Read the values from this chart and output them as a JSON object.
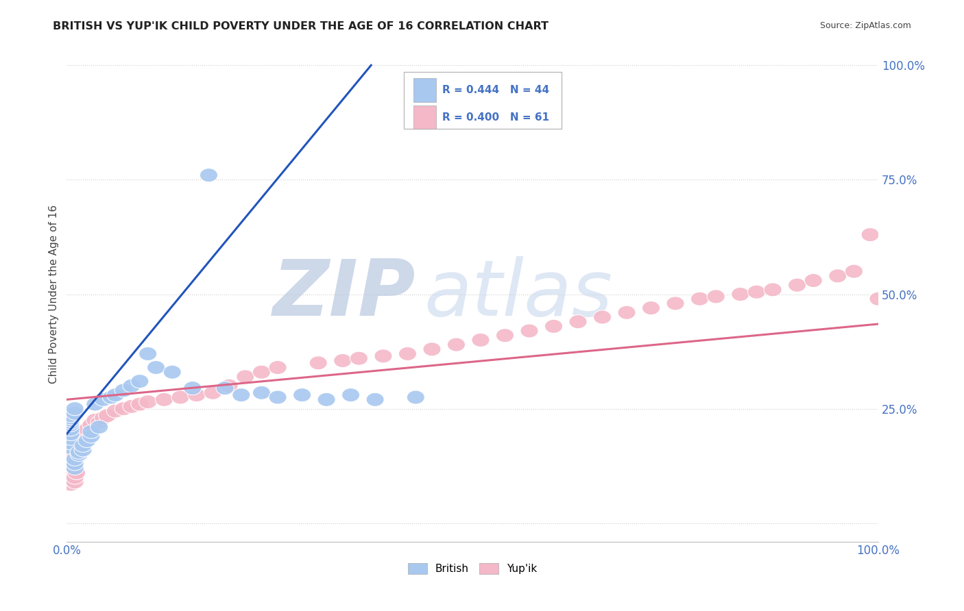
{
  "title": "BRITISH VS YUP'IK CHILD POVERTY UNDER THE AGE OF 16 CORRELATION CHART",
  "source_text": "Source: ZipAtlas.com",
  "ylabel": "Child Poverty Under the Age of 16",
  "R_british": 0.444,
  "N_british": 44,
  "R_yupik": 0.4,
  "N_yupik": 61,
  "british_color": "#a8c8f0",
  "yupik_color": "#f4b8c8",
  "british_line_color": "#2255bb",
  "yupik_line_color": "#dd6688",
  "watermark1": "ZIP",
  "watermark2": "atlas",
  "watermark_color": "#ccd8ee",
  "british_x": [
    0.005,
    0.005,
    0.005,
    0.005,
    0.005,
    0.005,
    0.005,
    0.005,
    0.005,
    0.005,
    0.01,
    0.01,
    0.01,
    0.01,
    0.01,
    0.015,
    0.015,
    0.02,
    0.02,
    0.025,
    0.03,
    0.03,
    0.035,
    0.04,
    0.045,
    0.055,
    0.06,
    0.07,
    0.08,
    0.09,
    0.1,
    0.11,
    0.13,
    0.155,
    0.175,
    0.195,
    0.215,
    0.24,
    0.26,
    0.29,
    0.32,
    0.35,
    0.38,
    0.43
  ],
  "british_y": [
    0.165,
    0.175,
    0.185,
    0.195,
    0.205,
    0.215,
    0.22,
    0.225,
    0.23,
    0.235,
    0.12,
    0.13,
    0.14,
    0.24,
    0.25,
    0.15,
    0.155,
    0.16,
    0.17,
    0.18,
    0.19,
    0.2,
    0.26,
    0.21,
    0.27,
    0.275,
    0.28,
    0.29,
    0.3,
    0.31,
    0.37,
    0.34,
    0.33,
    0.295,
    0.76,
    0.295,
    0.28,
    0.285,
    0.275,
    0.28,
    0.27,
    0.28,
    0.27,
    0.275
  ],
  "yupik_x": [
    0.005,
    0.005,
    0.005,
    0.005,
    0.005,
    0.005,
    0.005,
    0.008,
    0.01,
    0.01,
    0.012,
    0.015,
    0.015,
    0.018,
    0.02,
    0.025,
    0.03,
    0.035,
    0.04,
    0.045,
    0.05,
    0.06,
    0.07,
    0.08,
    0.09,
    0.1,
    0.12,
    0.14,
    0.16,
    0.18,
    0.2,
    0.22,
    0.24,
    0.26,
    0.31,
    0.34,
    0.36,
    0.39,
    0.42,
    0.45,
    0.48,
    0.51,
    0.54,
    0.57,
    0.6,
    0.63,
    0.66,
    0.69,
    0.72,
    0.75,
    0.78,
    0.8,
    0.83,
    0.85,
    0.87,
    0.9,
    0.92,
    0.95,
    0.97,
    0.99,
    1.0
  ],
  "yupik_y": [
    0.085,
    0.095,
    0.105,
    0.115,
    0.125,
    0.135,
    0.145,
    0.155,
    0.09,
    0.1,
    0.11,
    0.165,
    0.175,
    0.185,
    0.195,
    0.205,
    0.215,
    0.225,
    0.22,
    0.23,
    0.235,
    0.245,
    0.25,
    0.255,
    0.26,
    0.265,
    0.27,
    0.275,
    0.28,
    0.285,
    0.3,
    0.32,
    0.33,
    0.34,
    0.35,
    0.355,
    0.36,
    0.365,
    0.37,
    0.38,
    0.39,
    0.4,
    0.41,
    0.42,
    0.43,
    0.44,
    0.45,
    0.46,
    0.47,
    0.48,
    0.49,
    0.495,
    0.5,
    0.505,
    0.51,
    0.52,
    0.53,
    0.54,
    0.55,
    0.63,
    0.49
  ],
  "brit_line_x0": 0.0,
  "brit_line_y0": 0.195,
  "brit_line_x1": 0.375,
  "brit_line_y1": 1.0,
  "yupik_line_x0": 0.0,
  "yupik_line_y0": 0.27,
  "yupik_line_x1": 1.0,
  "yupik_line_y1": 0.435,
  "xlim": [
    0.0,
    1.0
  ],
  "ylim": [
    -0.04,
    1.04
  ],
  "yticks": [
    0.0,
    0.25,
    0.5,
    0.75,
    1.0
  ],
  "ytick_labels": [
    "",
    "25.0%",
    "50.0%",
    "75.0%",
    "100.0%"
  ],
  "xtick_labels": [
    "0.0%",
    "100.0%"
  ],
  "background_color": "#ffffff"
}
